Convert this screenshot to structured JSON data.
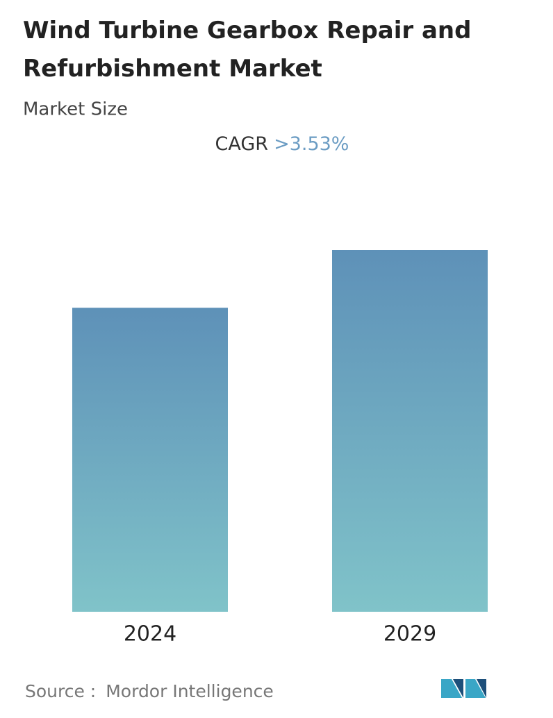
{
  "chart_data": {
    "type": "bar",
    "title": "Wind Turbine Gearbox Repair and Refurbishment Market",
    "subtitle": "Market Size",
    "cagr_label": "CAGR",
    "cagr_value": ">3.53%",
    "categories": [
      "2024",
      "2029"
    ],
    "values": [
      100,
      119
    ],
    "color": {
      "top": "#5e91b8",
      "bottom": "#80c3c9"
    },
    "source_label": "Source :",
    "source": "Mordor Intelligence"
  }
}
